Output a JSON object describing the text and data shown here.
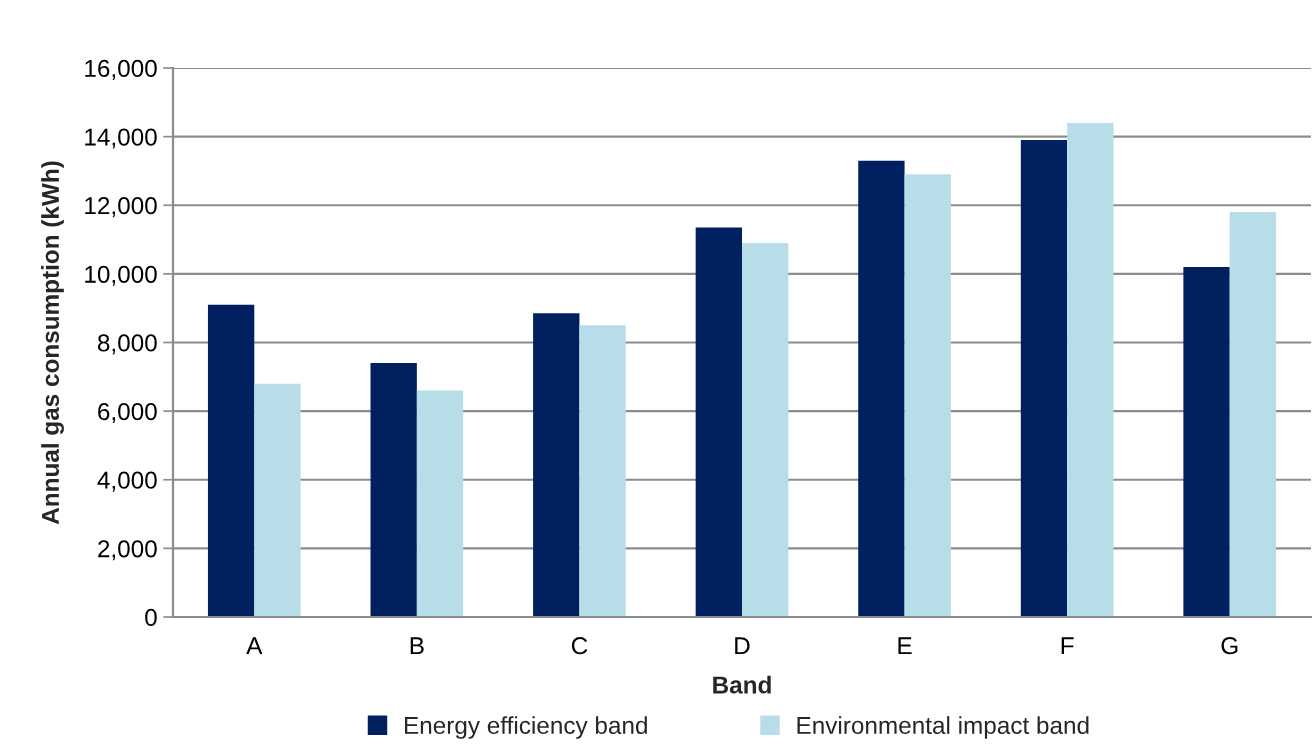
{
  "chart_data": {
    "type": "bar",
    "xlabel": "Band",
    "ylabel": "Annual gas consumption (kWh)",
    "categories": [
      "A",
      "B",
      "C",
      "D",
      "E",
      "F",
      "G"
    ],
    "series": [
      {
        "name": "Energy efficiency band",
        "color": "#002060",
        "values": [
          9100,
          7400,
          8850,
          11350,
          13300,
          13900,
          10200
        ]
      },
      {
        "name": "Environmental impact band",
        "color": "#b7dde8",
        "values": [
          6800,
          6600,
          8500,
          10900,
          12900,
          14400,
          11800
        ]
      }
    ],
    "ylim": [
      0,
      16000
    ],
    "yticks": [
      {
        "value": 0,
        "label": "0"
      },
      {
        "value": 2000,
        "label": "2,000"
      },
      {
        "value": 4000,
        "label": "4,000"
      },
      {
        "value": 6000,
        "label": "6,000"
      },
      {
        "value": 8000,
        "label": "8,000"
      },
      {
        "value": 10000,
        "label": "10,000"
      },
      {
        "value": 12000,
        "label": "12,000"
      },
      {
        "value": 14000,
        "label": "14,000"
      },
      {
        "value": 16000,
        "label": "16,000"
      }
    ],
    "grid": "y",
    "legend": "bottom"
  }
}
